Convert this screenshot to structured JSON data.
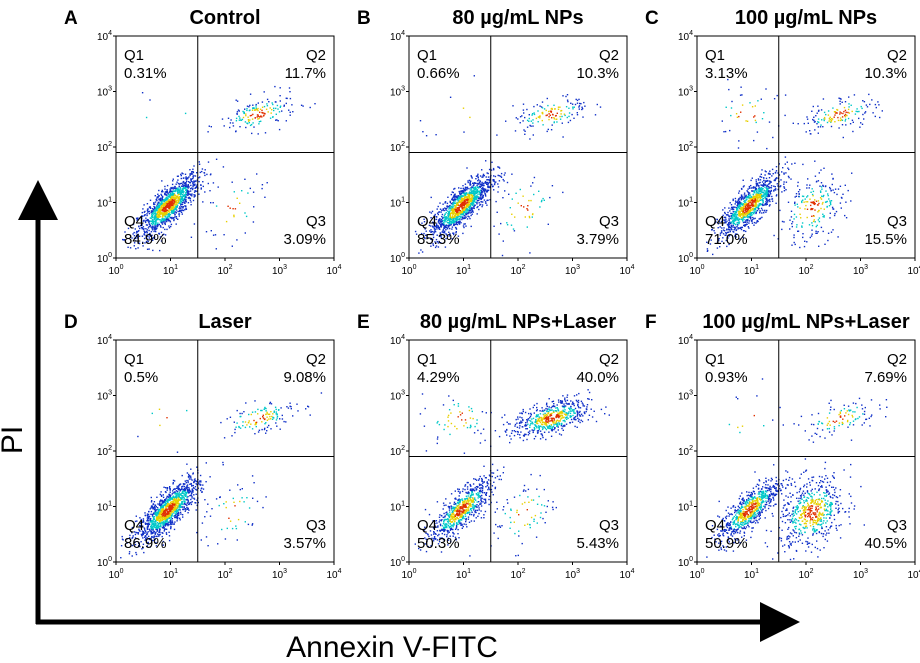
{
  "chart_data": {
    "type": "scatter",
    "description_type": "flow-cytometry-quadrant-panels",
    "x_axis_label": "Annexin V-FITC",
    "y_axis_label": "PI",
    "axis_scale": "log",
    "axis_range": [
      0,
      4
    ],
    "tick_labels": [
      {
        "base": "10",
        "exp": "0"
      },
      {
        "base": "10",
        "exp": "1"
      },
      {
        "base": "10",
        "exp": "2"
      },
      {
        "base": "10",
        "exp": "3"
      },
      {
        "base": "10",
        "exp": "4"
      }
    ],
    "gate": {
      "x": 1.5,
      "y": 1.9
    },
    "colors": {
      "low": "#1030c8",
      "mid": "#00c8c8",
      "high": "#e8d000",
      "peak": "#e03000"
    },
    "panels": [
      {
        "label": "A",
        "title": "Control",
        "quadrants": [
          {
            "name": "Q1",
            "percent": "0.31%",
            "value": 0.31
          },
          {
            "name": "Q2",
            "percent": "11.7%",
            "value": 11.7
          },
          {
            "name": "Q3",
            "percent": "3.09%",
            "value": 3.09
          },
          {
            "name": "Q4",
            "percent": "84.9%",
            "value": 84.9
          }
        ]
      },
      {
        "label": "B",
        "title": "80 µg/mL NPs",
        "quadrants": [
          {
            "name": "Q1",
            "percent": "0.66%",
            "value": 0.66
          },
          {
            "name": "Q2",
            "percent": "10.3%",
            "value": 10.3
          },
          {
            "name": "Q3",
            "percent": "3.79%",
            "value": 3.79
          },
          {
            "name": "Q4",
            "percent": "85.3%",
            "value": 85.3
          }
        ]
      },
      {
        "label": "C",
        "title": "100 µg/mL NPs",
        "quadrants": [
          {
            "name": "Q1",
            "percent": "3.13%",
            "value": 3.13
          },
          {
            "name": "Q2",
            "percent": "10.3%",
            "value": 10.3
          },
          {
            "name": "Q3",
            "percent": "15.5%",
            "value": 15.5
          },
          {
            "name": "Q4",
            "percent": "71.0%",
            "value": 71.0
          }
        ]
      },
      {
        "label": "D",
        "title": "Laser",
        "quadrants": [
          {
            "name": "Q1",
            "percent": "0.5%",
            "value": 0.5
          },
          {
            "name": "Q2",
            "percent": "9.08%",
            "value": 9.08
          },
          {
            "name": "Q3",
            "percent": "3.57%",
            "value": 3.57
          },
          {
            "name": "Q4",
            "percent": "86.9%",
            "value": 86.9
          }
        ]
      },
      {
        "label": "E",
        "title": "80 µg/mL NPs+Laser",
        "quadrants": [
          {
            "name": "Q1",
            "percent": "4.29%",
            "value": 4.29
          },
          {
            "name": "Q2",
            "percent": "40.0%",
            "value": 40.0
          },
          {
            "name": "Q3",
            "percent": "5.43%",
            "value": 5.43
          },
          {
            "name": "Q4",
            "percent": "50.3%",
            "value": 50.3
          }
        ]
      },
      {
        "label": "F",
        "title": "100 µg/mL NPs+Laser",
        "quadrants": [
          {
            "name": "Q1",
            "percent": "0.93%",
            "value": 0.93
          },
          {
            "name": "Q2",
            "percent": "7.69%",
            "value": 7.69
          },
          {
            "name": "Q3",
            "percent": "40.5%",
            "value": 40.5
          },
          {
            "name": "Q4",
            "percent": "50.9%",
            "value": 50.9
          }
        ]
      }
    ]
  }
}
